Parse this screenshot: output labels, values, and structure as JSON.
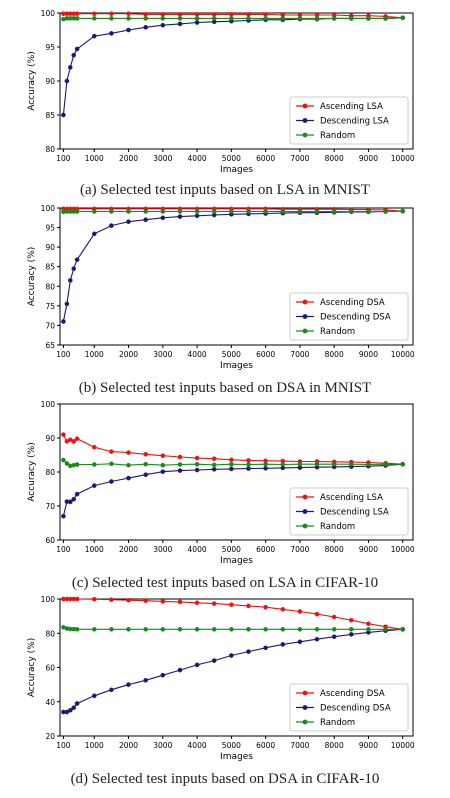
{
  "captions": [
    "(a) Selected test inputs based on LSA in MNIST",
    "(b) Selected test inputs based on DSA in MNIST",
    "(c) Selected test inputs based on LSA in CIFAR-10",
    "(d) Selected test inputs based on DSA in CIFAR-10"
  ],
  "chart_data": [
    {
      "type": "line",
      "xlabel": "Images",
      "ylabel": "Accuracy (%)",
      "xlim": [
        0,
        10300
      ],
      "ylim": [
        80,
        100
      ],
      "xticks": [
        100,
        1000,
        2000,
        3000,
        4000,
        5000,
        6000,
        7000,
        8000,
        9000,
        10000
      ],
      "yticks": [
        80,
        85,
        90,
        95,
        100
      ],
      "grid": false,
      "legend": "lower-right",
      "x": [
        100,
        200,
        300,
        400,
        500,
        1000,
        1500,
        2000,
        2500,
        3000,
        3500,
        4000,
        4500,
        5000,
        5500,
        6000,
        6500,
        7000,
        7500,
        8000,
        8500,
        9000,
        9500,
        10000
      ],
      "series": [
        {
          "name": "Ascending LSA",
          "color": "#ee1111",
          "values": [
            99.9,
            99.9,
            99.9,
            99.9,
            99.9,
            99.9,
            99.9,
            99.9,
            99.8,
            99.8,
            99.8,
            99.8,
            99.8,
            99.8,
            99.8,
            99.8,
            99.7,
            99.7,
            99.7,
            99.7,
            99.6,
            99.6,
            99.5,
            99.3
          ]
        },
        {
          "name": "Descending LSA",
          "color": "#1a1a6e",
          "values": [
            85.0,
            90.0,
            92.0,
            93.8,
            94.7,
            96.6,
            97.0,
            97.5,
            97.9,
            98.2,
            98.4,
            98.6,
            98.7,
            98.8,
            98.9,
            99.0,
            99.0,
            99.1,
            99.1,
            99.2,
            99.2,
            99.2,
            99.2,
            99.3
          ]
        },
        {
          "name": "Random",
          "color": "#1a8a1a",
          "values": [
            99.1,
            99.2,
            99.2,
            99.2,
            99.2,
            99.2,
            99.2,
            99.2,
            99.2,
            99.2,
            99.2,
            99.2,
            99.2,
            99.2,
            99.2,
            99.2,
            99.2,
            99.2,
            99.2,
            99.2,
            99.2,
            99.2,
            99.2,
            99.3
          ]
        }
      ]
    },
    {
      "type": "line",
      "xlabel": "Images",
      "ylabel": "Accuracy (%)",
      "xlim": [
        0,
        10300
      ],
      "ylim": [
        65,
        100
      ],
      "xticks": [
        100,
        1000,
        2000,
        3000,
        4000,
        5000,
        6000,
        7000,
        8000,
        9000,
        10000
      ],
      "yticks": [
        65,
        70,
        75,
        80,
        85,
        90,
        95,
        100
      ],
      "grid": false,
      "legend": "lower-right",
      "x": [
        100,
        200,
        300,
        400,
        500,
        1000,
        1500,
        2000,
        2500,
        3000,
        3500,
        4000,
        4500,
        5000,
        5500,
        6000,
        6500,
        7000,
        7500,
        8000,
        8500,
        9000,
        9500,
        10000
      ],
      "series": [
        {
          "name": "Ascending DSA",
          "color": "#ee1111",
          "values": [
            99.8,
            99.8,
            99.8,
            99.8,
            99.8,
            99.8,
            99.8,
            99.8,
            99.8,
            99.8,
            99.8,
            99.8,
            99.8,
            99.8,
            99.8,
            99.8,
            99.7,
            99.7,
            99.7,
            99.7,
            99.6,
            99.6,
            99.5,
            99.2
          ]
        },
        {
          "name": "Descending DSA",
          "color": "#1a1a6e",
          "values": [
            71.0,
            75.5,
            81.5,
            84.5,
            86.8,
            93.4,
            95.5,
            96.5,
            97.0,
            97.5,
            97.8,
            98.0,
            98.2,
            98.4,
            98.5,
            98.6,
            98.7,
            98.8,
            98.8,
            98.9,
            99.0,
            99.0,
            99.1,
            99.2
          ]
        },
        {
          "name": "Random",
          "color": "#1a8a1a",
          "values": [
            99.0,
            99.1,
            99.1,
            99.1,
            99.1,
            99.1,
            99.1,
            99.1,
            99.1,
            99.1,
            99.1,
            99.1,
            99.1,
            99.1,
            99.1,
            99.1,
            99.1,
            99.1,
            99.1,
            99.1,
            99.1,
            99.1,
            99.1,
            99.2
          ]
        }
      ]
    },
    {
      "type": "line",
      "xlabel": "Images",
      "ylabel": "Accuracy (%)",
      "xlim": [
        0,
        10300
      ],
      "ylim": [
        60,
        100
      ],
      "xticks": [
        100,
        1000,
        2000,
        3000,
        4000,
        5000,
        6000,
        7000,
        8000,
        9000,
        10000
      ],
      "yticks": [
        60,
        70,
        80,
        90,
        100
      ],
      "grid": false,
      "legend": "lower-right",
      "x": [
        100,
        200,
        300,
        400,
        500,
        1000,
        1500,
        2000,
        2500,
        3000,
        3500,
        4000,
        4500,
        5000,
        5500,
        6000,
        6500,
        7000,
        7500,
        8000,
        8500,
        9000,
        9500,
        10000
      ],
      "series": [
        {
          "name": "Ascending LSA",
          "color": "#ee1111",
          "values": [
            91.0,
            89.0,
            89.5,
            89.0,
            89.8,
            87.3,
            86.0,
            85.7,
            85.2,
            84.8,
            84.4,
            84.1,
            83.9,
            83.6,
            83.4,
            83.3,
            83.2,
            83.1,
            83.1,
            83.0,
            82.9,
            82.8,
            82.6,
            82.3
          ]
        },
        {
          "name": "Descending LSA",
          "color": "#1a1a6e",
          "values": [
            67.0,
            71.3,
            71.2,
            72.0,
            73.5,
            76.0,
            77.2,
            78.2,
            79.2,
            80.1,
            80.4,
            80.6,
            80.8,
            80.9,
            81.0,
            81.1,
            81.2,
            81.3,
            81.4,
            81.5,
            81.6,
            81.7,
            81.9,
            82.3
          ]
        },
        {
          "name": "Random",
          "color": "#1a8a1a",
          "values": [
            83.5,
            82.5,
            81.8,
            82.0,
            82.2,
            82.2,
            82.4,
            82.0,
            82.3,
            82.0,
            82.2,
            82.3,
            82.1,
            82.3,
            82.2,
            82.3,
            82.2,
            82.3,
            82.3,
            82.3,
            82.3,
            82.2,
            82.3,
            82.3
          ]
        }
      ]
    },
    {
      "type": "line",
      "xlabel": "Images",
      "ylabel": "Accuracy (%)",
      "xlim": [
        0,
        10300
      ],
      "ylim": [
        20,
        100
      ],
      "xticks": [
        100,
        1000,
        2000,
        3000,
        4000,
        5000,
        6000,
        7000,
        8000,
        9000,
        10000
      ],
      "yticks": [
        20,
        40,
        60,
        80,
        100
      ],
      "grid": false,
      "legend": "lower-right",
      "x": [
        100,
        200,
        300,
        400,
        500,
        1000,
        1500,
        2000,
        2500,
        3000,
        3500,
        4000,
        4500,
        5000,
        5500,
        6000,
        6500,
        7000,
        7500,
        8000,
        8500,
        9000,
        9500,
        10000
      ],
      "series": [
        {
          "name": "Ascending DSA",
          "color": "#ee1111",
          "values": [
            100.0,
            100.0,
            100.0,
            100.0,
            100.0,
            99.9,
            99.6,
            99.3,
            99.0,
            98.6,
            98.3,
            97.8,
            97.3,
            96.7,
            96.0,
            95.2,
            94.0,
            92.7,
            91.2,
            89.5,
            87.6,
            85.6,
            83.8,
            82.3
          ]
        },
        {
          "name": "Descending DSA",
          "color": "#1a1a6e",
          "values": [
            34.0,
            34.0,
            35.0,
            36.5,
            39.0,
            43.5,
            47.0,
            50.0,
            52.5,
            55.5,
            58.5,
            61.5,
            64.0,
            67.0,
            69.3,
            71.5,
            73.5,
            75.0,
            76.5,
            78.0,
            79.3,
            80.5,
            81.5,
            82.3
          ]
        },
        {
          "name": "Random",
          "color": "#1a8a1a",
          "values": [
            83.5,
            82.8,
            82.5,
            82.4,
            82.3,
            82.3,
            82.3,
            82.3,
            82.3,
            82.3,
            82.3,
            82.3,
            82.3,
            82.3,
            82.3,
            82.3,
            82.3,
            82.3,
            82.3,
            82.3,
            82.3,
            82.3,
            82.3,
            82.3
          ]
        }
      ]
    }
  ]
}
